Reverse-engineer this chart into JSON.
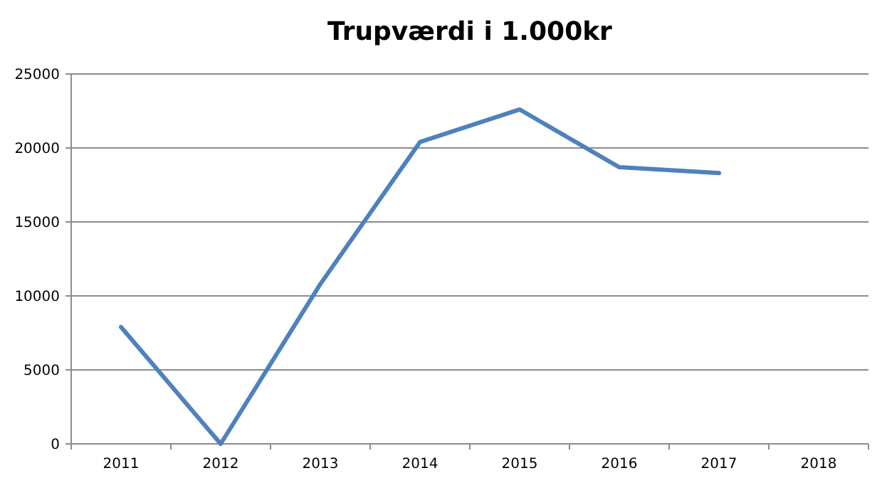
{
  "chart_data": {
    "type": "line",
    "title": "Trupværdi i 1.000kr",
    "categories": [
      "2011",
      "2012",
      "2013",
      "2014",
      "2015",
      "2016",
      "2017",
      "2018"
    ],
    "series": [
      {
        "color": "#4f81bd",
        "values": [
          7900,
          0,
          10800,
          20400,
          22600,
          18700,
          18300,
          null
        ]
      }
    ],
    "ylim": [
      0,
      25000
    ],
    "yticks": [
      0,
      5000,
      10000,
      15000,
      20000,
      25000
    ],
    "grid": "y",
    "marker": "none",
    "line_style": "solid"
  }
}
